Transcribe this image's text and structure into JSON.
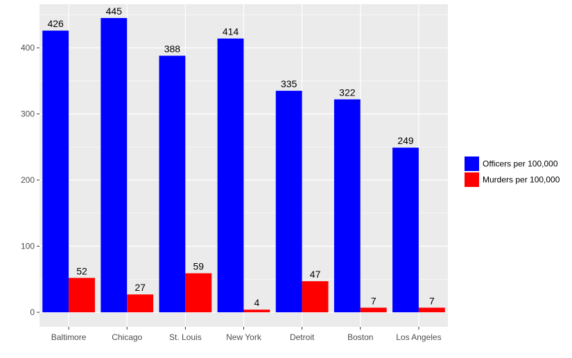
{
  "chart_data": {
    "type": "bar",
    "title": "",
    "xlabel": "",
    "ylabel": "",
    "categories": [
      "Baltimore",
      "Chicago",
      "St. Louis",
      "New York",
      "Detroit",
      "Boston",
      "Los Angeles"
    ],
    "series": [
      {
        "name": "Officers per 100,000",
        "color": "#0000ff",
        "values": [
          426,
          445,
          388,
          414,
          335,
          322,
          249
        ]
      },
      {
        "name": "Murders per 100,000",
        "color": "#ff0000",
        "values": [
          52,
          27,
          59,
          4,
          47,
          7,
          7
        ]
      }
    ],
    "yticks": [
      0,
      100,
      200,
      300,
      400
    ],
    "ylim": [
      -22,
      466
    ],
    "grid": true,
    "legend_position": "right",
    "panel_background": "#ebebeb",
    "grid_color": "#ffffff"
  }
}
